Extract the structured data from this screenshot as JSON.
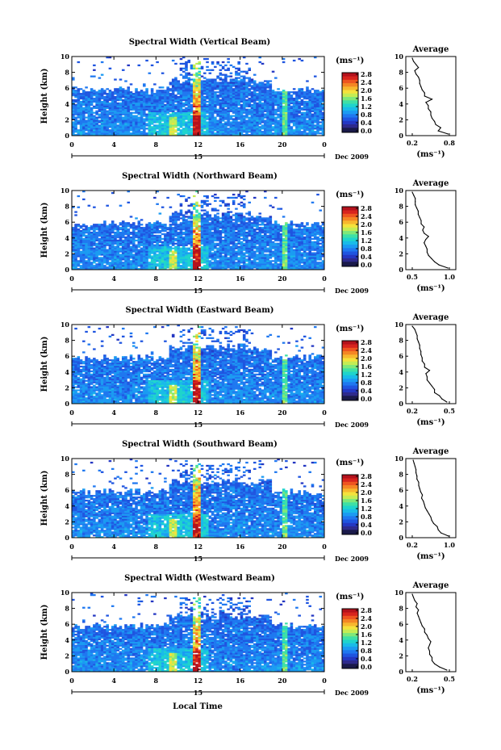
{
  "figure": {
    "xlabel": "Local Time",
    "date_label": "Dec 2009",
    "day_marker": "15",
    "unit_label": "(ms⁻¹)"
  },
  "colormap": [
    "#2e2a8c",
    "#2437c2",
    "#1f55e0",
    "#1f78f0",
    "#1b9bf2",
    "#19bbe8",
    "#1fd4cc",
    "#3ee0a6",
    "#7ee87a",
    "#c4ec54",
    "#f4e23c",
    "#f7b72e",
    "#f48624",
    "#ee5520",
    "#d8241e",
    "#b4121c"
  ],
  "chart_data": [
    {
      "type": "heatmap",
      "title": "Spectral Width (Vertical Beam)",
      "ylabel": "Height (km)",
      "x_ticks": [
        "0",
        "4",
        "8",
        "12",
        "16",
        "20",
        "0"
      ],
      "y_ticks": [
        "0",
        "2",
        "4",
        "6",
        "8",
        "10"
      ],
      "ylim": [
        0,
        10
      ],
      "xlim": [
        0,
        24
      ],
      "colorbar_ticks": [
        "0.0",
        "0.4",
        "0.8",
        "1.2",
        "1.6",
        "2.0",
        "2.4",
        "2.8"
      ],
      "colorbar_range": [
        0,
        3.0
      ],
      "profile": {
        "title": "Average",
        "xlabel": "(ms⁻¹)",
        "x_ticks": [
          "0.2",
          "0.8"
        ],
        "xlim": [
          0.2,
          0.8
        ],
        "heights": [
          0.2,
          0.6,
          1.0,
          1.4,
          1.8,
          2.2,
          2.6,
          3.0,
          3.4,
          3.8,
          4.2,
          4.6,
          5.0,
          5.4,
          5.8,
          6.2,
          6.6,
          7.0,
          7.4,
          7.8,
          8.2,
          8.6,
          9.0,
          9.4,
          9.8
        ],
        "values": [
          0.78,
          0.62,
          0.66,
          0.58,
          0.56,
          0.52,
          0.5,
          0.5,
          0.46,
          0.46,
          0.42,
          0.52,
          0.4,
          0.4,
          0.36,
          0.34,
          0.32,
          0.32,
          0.3,
          0.26,
          0.24,
          0.3,
          0.26,
          0.22,
          0.2
        ]
      }
    },
    {
      "type": "heatmap",
      "title": "Spectral Width (Northward Beam)",
      "ylabel": "Height (km)",
      "x_ticks": [
        "0",
        "4",
        "8",
        "12",
        "16",
        "20",
        "0"
      ],
      "y_ticks": [
        "0",
        "2",
        "4",
        "6",
        "8",
        "10"
      ],
      "ylim": [
        0,
        10
      ],
      "xlim": [
        0,
        24
      ],
      "colorbar_ticks": [
        "0.0",
        "0.4",
        "0.8",
        "1.2",
        "1.6",
        "2.0",
        "2.4",
        "2.8"
      ],
      "colorbar_range": [
        0,
        3.0
      ],
      "profile": {
        "title": "Average",
        "xlabel": "(ms⁻¹)",
        "x_ticks": [
          "0.5",
          "1.0"
        ],
        "xlim": [
          0.5,
          1.0
        ],
        "heights": [
          0.2,
          0.6,
          1.0,
          1.4,
          1.8,
          2.2,
          2.6,
          3.0,
          3.4,
          3.8,
          4.2,
          4.6,
          5.0,
          5.4,
          5.8,
          6.2,
          6.6,
          7.0,
          7.4,
          7.8,
          8.2,
          8.6,
          9.0,
          9.4,
          9.8
        ],
        "values": [
          0.98,
          0.86,
          0.8,
          0.76,
          0.72,
          0.7,
          0.7,
          0.68,
          0.66,
          0.68,
          0.72,
          0.66,
          0.64,
          0.66,
          0.62,
          0.62,
          0.6,
          0.58,
          0.58,
          0.56,
          0.54,
          0.54,
          0.54,
          0.52,
          0.5
        ]
      }
    },
    {
      "type": "heatmap",
      "title": "Spectral Width (Eastward Beam)",
      "ylabel": "Height (km)",
      "x_ticks": [
        "0",
        "4",
        "8",
        "12",
        "16",
        "20",
        "0"
      ],
      "y_ticks": [
        "0",
        "2",
        "4",
        "6",
        "8",
        "10"
      ],
      "ylim": [
        0,
        10
      ],
      "xlim": [
        0,
        24
      ],
      "colorbar_ticks": [
        "0.0",
        "0.4",
        "0.8",
        "1.2",
        "1.6",
        "2.0",
        "2.4",
        "2.8"
      ],
      "colorbar_range": [
        0,
        3.0
      ],
      "profile": {
        "title": "Average",
        "xlabel": "(ms⁻¹)",
        "x_ticks": [
          "0.2",
          "0.5"
        ],
        "xlim": [
          0.2,
          0.5
        ],
        "heights": [
          0.2,
          0.6,
          1.0,
          1.4,
          1.8,
          2.2,
          2.6,
          3.0,
          3.4,
          3.8,
          4.2,
          4.6,
          5.0,
          5.4,
          5.8,
          6.2,
          6.6,
          7.0,
          7.4,
          7.8,
          8.2,
          8.6,
          9.0,
          9.4,
          9.8
        ],
        "values": [
          0.48,
          0.44,
          0.42,
          0.38,
          0.38,
          0.36,
          0.34,
          0.32,
          0.32,
          0.31,
          0.34,
          0.3,
          0.3,
          0.28,
          0.28,
          0.27,
          0.27,
          0.26,
          0.26,
          0.25,
          0.24,
          0.24,
          0.23,
          0.22,
          0.2
        ]
      }
    },
    {
      "type": "heatmap",
      "title": "Spectral Width (Southward Beam)",
      "ylabel": "Height (km)",
      "x_ticks": [
        "0",
        "4",
        "8",
        "12",
        "16",
        "20",
        "0"
      ],
      "y_ticks": [
        "0",
        "2",
        "4",
        "6",
        "8",
        "10"
      ],
      "ylim": [
        0,
        10
      ],
      "xlim": [
        0,
        24
      ],
      "colorbar_ticks": [
        "0.0",
        "0.4",
        "0.8",
        "1.2",
        "1.6",
        "2.0",
        "2.4",
        "2.8"
      ],
      "colorbar_range": [
        0,
        3.0
      ],
      "profile": {
        "title": "Average",
        "xlabel": "(ms⁻¹)",
        "x_ticks": [
          "0.2",
          "1.0"
        ],
        "xlim": [
          0.2,
          1.0
        ],
        "heights": [
          0.2,
          0.6,
          1.0,
          1.4,
          1.8,
          2.2,
          2.6,
          3.0,
          3.4,
          3.8,
          4.2,
          4.6,
          5.0,
          5.4,
          5.8,
          6.2,
          6.6,
          7.0,
          7.4,
          7.8,
          8.2,
          8.6,
          9.0,
          9.4,
          9.8
        ],
        "values": [
          0.98,
          0.82,
          0.76,
          0.74,
          0.66,
          0.62,
          0.6,
          0.56,
          0.52,
          0.48,
          0.46,
          0.44,
          0.4,
          0.42,
          0.38,
          0.36,
          0.34,
          0.34,
          0.3,
          0.3,
          0.28,
          0.28,
          0.26,
          0.24,
          0.22
        ]
      }
    },
    {
      "type": "heatmap",
      "title": "Spectral Width (Westward Beam)",
      "ylabel": "Height (km)",
      "x_ticks": [
        "0",
        "4",
        "8",
        "12",
        "16",
        "20",
        "0"
      ],
      "y_ticks": [
        "0",
        "2",
        "4",
        "6",
        "8",
        "10"
      ],
      "ylim": [
        0,
        10
      ],
      "xlim": [
        0,
        24
      ],
      "colorbar_ticks": [
        "0.0",
        "0.4",
        "0.8",
        "1.2",
        "1.6",
        "2.0",
        "2.4",
        "2.8"
      ],
      "colorbar_range": [
        0,
        3.0
      ],
      "profile": {
        "title": "Average",
        "xlabel": "(ms⁻¹)",
        "x_ticks": [
          "0.2",
          "0.5"
        ],
        "xlim": [
          0.2,
          0.5
        ],
        "heights": [
          0.2,
          0.6,
          1.0,
          1.4,
          1.8,
          2.2,
          2.6,
          3.0,
          3.4,
          3.8,
          4.2,
          4.6,
          5.0,
          5.4,
          5.8,
          6.2,
          6.6,
          7.0,
          7.4,
          7.8,
          8.2,
          8.6,
          9.0,
          9.4,
          9.8
        ],
        "values": [
          0.48,
          0.42,
          0.38,
          0.36,
          0.36,
          0.34,
          0.34,
          0.33,
          0.34,
          0.35,
          0.33,
          0.32,
          0.3,
          0.3,
          0.28,
          0.27,
          0.26,
          0.25,
          0.24,
          0.25,
          0.23,
          0.24,
          0.22,
          0.21,
          0.2
        ]
      }
    }
  ]
}
